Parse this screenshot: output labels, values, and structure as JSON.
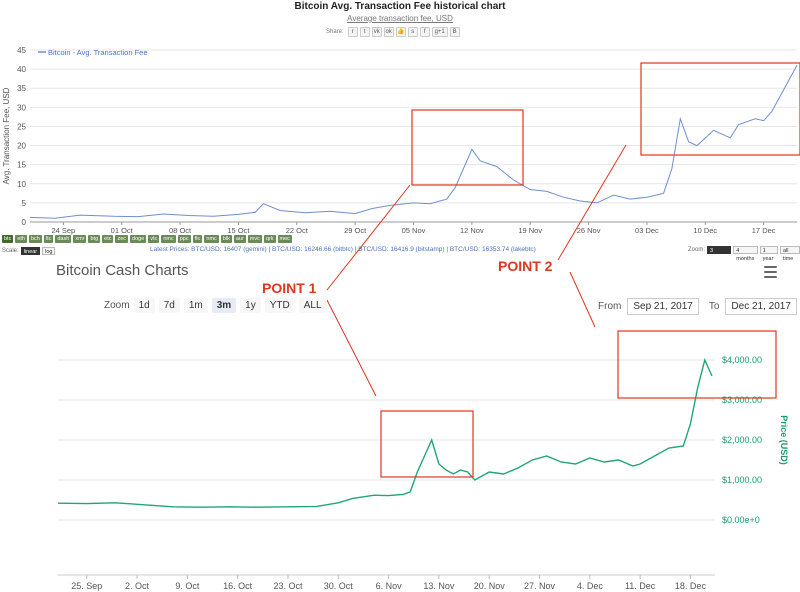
{
  "top_chart": {
    "title": "Bitcoin Avg. Transaction Fee historical chart",
    "subtitle": "Average transaction fee, USD",
    "share_label": "Share:",
    "share_icons": [
      "reddit-icon",
      "twitter-icon",
      "vk-icon",
      "ok-icon",
      "like-icon",
      "stumble-icon",
      "facebook-icon",
      "googleplus-icon",
      "blogger-icon"
    ],
    "share_glyphs": [
      "r",
      "t",
      "vk",
      "ok",
      "👍",
      "s",
      "f",
      "g+1",
      "B"
    ],
    "legend": "Bitcoin - Avg. Transaction Fee",
    "ylabel": "Avg. Transaction Fee, USD",
    "coins": [
      "btc",
      "eth",
      "bch",
      "ltc",
      "dash",
      "xmr",
      "btg",
      "etc",
      "zec",
      "doge",
      "vtc",
      "nmc",
      "ppc",
      "ftc",
      "nmc",
      "blk",
      "aur",
      "mvc",
      "qrk",
      "mec"
    ],
    "scale_label": "Scale:",
    "scale_options": [
      "linear",
      "log"
    ],
    "latest_prices": "Latest Prices: BTC/USD: 16407 (gemini) | BTC/USD: 16246.66 (bitbtc) | BTC/USD: 16416.9 (bitstamp) | BTC/USD: 16353.74 (lakebtc)",
    "zoom_label": "Zoom:",
    "zoom_options": [
      "3 months",
      "4 months",
      "1 year",
      "all time"
    ]
  },
  "bottom_chart": {
    "title": "Bitcoin Cash Charts",
    "zoom_label": "Zoom",
    "zoom_buttons": [
      "1d",
      "7d",
      "1m",
      "3m",
      "1y",
      "YTD",
      "ALL"
    ],
    "from_label": "From",
    "from_value": "Sep 21, 2017",
    "to_label": "To",
    "to_value": "Dec 21, 2017",
    "ylabel": "Price (USD)"
  },
  "annotations": {
    "point1": "POINT 1",
    "point2": "POINT 2"
  },
  "colors": {
    "fee_line": "#6f8fd0",
    "price_line": "#1fa67a",
    "annotation": "#e0351f",
    "legend_text": "#4a72c4"
  },
  "chart_data": [
    {
      "type": "line",
      "title": "Bitcoin Avg. Transaction Fee historical chart",
      "subtitle": "Average transaction fee, USD",
      "ylabel": "Avg. Transaction Fee, USD",
      "xlabel": "",
      "ylim": [
        0,
        45
      ],
      "yticks": [
        0,
        5,
        10,
        15,
        20,
        25,
        30,
        35,
        40,
        45
      ],
      "xticks": [
        "24 Sep",
        "01 Oct",
        "08 Oct",
        "15 Oct",
        "22 Oct",
        "29 Oct",
        "05 Nov",
        "12 Nov",
        "19 Nov",
        "26 Nov",
        "03 Dec",
        "10 Dec",
        "17 Dec"
      ],
      "x_start": "2017-09-20",
      "grid": "horizontal",
      "legend": "top-left",
      "series": [
        {
          "name": "Bitcoin - Avg. Transaction Fee",
          "points": [
            [
              "2017-09-20",
              1.2
            ],
            [
              "2017-09-23",
              1.0
            ],
            [
              "2017-09-26",
              1.8
            ],
            [
              "2017-09-30",
              1.5
            ],
            [
              "2017-10-03",
              1.4
            ],
            [
              "2017-10-06",
              2.1
            ],
            [
              "2017-10-09",
              1.7
            ],
            [
              "2017-10-12",
              1.5
            ],
            [
              "2017-10-15",
              2.0
            ],
            [
              "2017-10-17",
              2.5
            ],
            [
              "2017-10-18",
              4.8
            ],
            [
              "2017-10-20",
              3.0
            ],
            [
              "2017-10-23",
              2.4
            ],
            [
              "2017-10-26",
              2.8
            ],
            [
              "2017-10-29",
              2.2
            ],
            [
              "2017-10-31",
              3.5
            ],
            [
              "2017-11-02",
              4.3
            ],
            [
              "2017-11-05",
              5.0
            ],
            [
              "2017-11-07",
              4.8
            ],
            [
              "2017-11-09",
              6.0
            ],
            [
              "2017-11-10",
              9.0
            ],
            [
              "2017-11-11",
              14.0
            ],
            [
              "2017-11-12",
              19.0
            ],
            [
              "2017-11-13",
              16.0
            ],
            [
              "2017-11-15",
              14.5
            ],
            [
              "2017-11-17",
              11.0
            ],
            [
              "2017-11-19",
              8.5
            ],
            [
              "2017-11-21",
              8.0
            ],
            [
              "2017-11-23",
              6.5
            ],
            [
              "2017-11-25",
              5.5
            ],
            [
              "2017-11-27",
              5.0
            ],
            [
              "2017-11-29",
              7.0
            ],
            [
              "2017-12-01",
              6.0
            ],
            [
              "2017-12-03",
              6.5
            ],
            [
              "2017-12-05",
              7.5
            ],
            [
              "2017-12-06",
              14.0
            ],
            [
              "2017-12-07",
              27.0
            ],
            [
              "2017-12-08",
              21.0
            ],
            [
              "2017-12-09",
              20.0
            ],
            [
              "2017-12-11",
              24.0
            ],
            [
              "2017-12-13",
              22.0
            ],
            [
              "2017-12-14",
              25.5
            ],
            [
              "2017-12-16",
              27.0
            ],
            [
              "2017-12-17",
              26.5
            ],
            [
              "2017-12-18",
              29.0
            ],
            [
              "2017-12-19",
              33.0
            ],
            [
              "2017-12-21",
              41.0
            ]
          ]
        }
      ]
    },
    {
      "type": "line",
      "title": "Bitcoin Cash Charts",
      "ylabel": "Price (USD)",
      "xlabel": "",
      "ylim": [
        0,
        4000
      ],
      "yticks": [
        0,
        1000,
        2000,
        3000,
        4000
      ],
      "ytick_labels": [
        "$0.00e+0",
        "$1,000.00",
        "$2,000.00",
        "$3,000.00",
        "$4,000.00"
      ],
      "xticks": [
        "25. Sep",
        "2. Oct",
        "9. Oct",
        "16. Oct",
        "23. Oct",
        "30. Oct",
        "6. Nov",
        "13. Nov",
        "20. Nov",
        "27. Nov",
        "4. Dec",
        "11. Dec",
        "18. Dec"
      ],
      "x_start": "2017-09-21",
      "grid": "horizontal",
      "series": [
        {
          "name": "",
          "points": [
            [
              "2017-09-21",
              420
            ],
            [
              "2017-09-25",
              410
            ],
            [
              "2017-09-29",
              430
            ],
            [
              "2017-10-03",
              380
            ],
            [
              "2017-10-07",
              330
            ],
            [
              "2017-10-11",
              320
            ],
            [
              "2017-10-15",
              330
            ],
            [
              "2017-10-19",
              320
            ],
            [
              "2017-10-23",
              330
            ],
            [
              "2017-10-27",
              340
            ],
            [
              "2017-10-30",
              430
            ],
            [
              "2017-11-01",
              540
            ],
            [
              "2017-11-04",
              620
            ],
            [
              "2017-11-06",
              610
            ],
            [
              "2017-11-08",
              640
            ],
            [
              "2017-11-09",
              700
            ],
            [
              "2017-11-10",
              1200
            ],
            [
              "2017-11-11",
              1600
            ],
            [
              "2017-11-12",
              2000
            ],
            [
              "2017-11-13",
              1400
            ],
            [
              "2017-11-14",
              1250
            ],
            [
              "2017-11-15",
              1150
            ],
            [
              "2017-11-16",
              1250
            ],
            [
              "2017-11-17",
              1200
            ],
            [
              "2017-11-18",
              1000
            ],
            [
              "2017-11-19",
              1100
            ],
            [
              "2017-11-20",
              1200
            ],
            [
              "2017-11-22",
              1150
            ],
            [
              "2017-11-24",
              1300
            ],
            [
              "2017-11-26",
              1500
            ],
            [
              "2017-11-28",
              1600
            ],
            [
              "2017-11-30",
              1450
            ],
            [
              "2017-12-02",
              1400
            ],
            [
              "2017-12-04",
              1550
            ],
            [
              "2017-12-06",
              1450
            ],
            [
              "2017-12-08",
              1500
            ],
            [
              "2017-12-10",
              1350
            ],
            [
              "2017-12-11",
              1400
            ],
            [
              "2017-12-13",
              1600
            ],
            [
              "2017-12-15",
              1800
            ],
            [
              "2017-12-17",
              1850
            ],
            [
              "2017-12-18",
              2400
            ],
            [
              "2017-12-19",
              3300
            ],
            [
              "2017-12-20",
              4000
            ],
            [
              "2017-12-21",
              3600
            ]
          ]
        }
      ]
    }
  ]
}
